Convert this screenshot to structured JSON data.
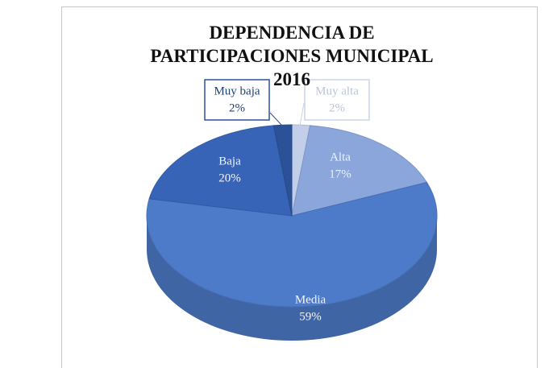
{
  "chart_data": {
    "type": "pie3d",
    "title": "DEPENDENCIA DE PARTICIPACIONES MUNICIPAL 2016",
    "categories": [
      "Muy alta",
      "Alta",
      "Media",
      "Baja",
      "Muy baja"
    ],
    "values": [
      2,
      17,
      59,
      20,
      2
    ],
    "value_labels": [
      "2%",
      "17%",
      "59%",
      "20%",
      "2%"
    ],
    "colors": [
      "#c3cfe9",
      "#8aa6da",
      "#4e7bc9",
      "#3764b6",
      "#2b5197"
    ]
  }
}
